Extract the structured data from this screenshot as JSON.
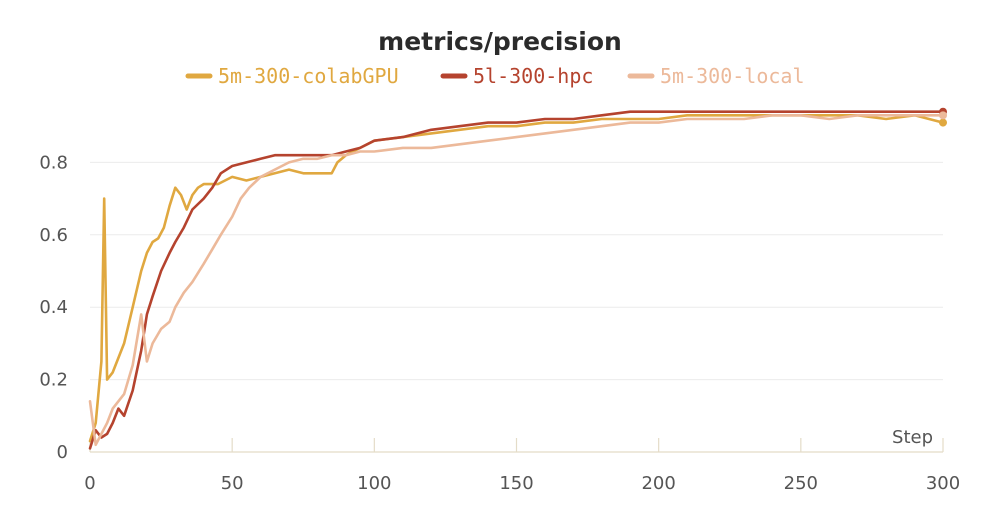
{
  "chart_data": {
    "type": "line",
    "title": "metrics/precision",
    "xlabel": "Step",
    "ylabel": "",
    "xlim": [
      0,
      300
    ],
    "ylim": [
      0,
      1
    ],
    "xticks": [
      0,
      50,
      100,
      150,
      200,
      250,
      300
    ],
    "yticks": [
      0,
      0.2,
      0.4,
      0.6,
      0.8
    ],
    "ytick_labels": [
      "0",
      "0.2",
      "0.4",
      "0.6",
      "0.8"
    ],
    "legend_position": "top",
    "series": [
      {
        "name": "5m-300-colabGPU",
        "color": "#e0a840",
        "points": [
          [
            0,
            0.03
          ],
          [
            2,
            0.08
          ],
          [
            4,
            0.25
          ],
          [
            5,
            0.7
          ],
          [
            6,
            0.2
          ],
          [
            8,
            0.22
          ],
          [
            10,
            0.26
          ],
          [
            12,
            0.3
          ],
          [
            15,
            0.4
          ],
          [
            18,
            0.5
          ],
          [
            20,
            0.55
          ],
          [
            22,
            0.58
          ],
          [
            24,
            0.59
          ],
          [
            26,
            0.62
          ],
          [
            28,
            0.68
          ],
          [
            30,
            0.73
          ],
          [
            32,
            0.71
          ],
          [
            34,
            0.67
          ],
          [
            36,
            0.71
          ],
          [
            38,
            0.73
          ],
          [
            40,
            0.74
          ],
          [
            45,
            0.74
          ],
          [
            50,
            0.76
          ],
          [
            55,
            0.75
          ],
          [
            60,
            0.76
          ],
          [
            65,
            0.77
          ],
          [
            70,
            0.78
          ],
          [
            75,
            0.77
          ],
          [
            80,
            0.77
          ],
          [
            85,
            0.77
          ],
          [
            87,
            0.8
          ],
          [
            90,
            0.82
          ],
          [
            95,
            0.84
          ],
          [
            100,
            0.86
          ],
          [
            110,
            0.87
          ],
          [
            120,
            0.88
          ],
          [
            130,
            0.89
          ],
          [
            140,
            0.9
          ],
          [
            150,
            0.9
          ],
          [
            160,
            0.91
          ],
          [
            170,
            0.91
          ],
          [
            180,
            0.92
          ],
          [
            190,
            0.92
          ],
          [
            200,
            0.92
          ],
          [
            210,
            0.93
          ],
          [
            220,
            0.93
          ],
          [
            230,
            0.93
          ],
          [
            240,
            0.93
          ],
          [
            250,
            0.93
          ],
          [
            260,
            0.93
          ],
          [
            270,
            0.93
          ],
          [
            280,
            0.92
          ],
          [
            290,
            0.93
          ],
          [
            300,
            0.91
          ]
        ]
      },
      {
        "name": "5l-300-hpc",
        "color": "#b5432e",
        "points": [
          [
            0,
            0.01
          ],
          [
            2,
            0.06
          ],
          [
            4,
            0.04
          ],
          [
            6,
            0.05
          ],
          [
            8,
            0.08
          ],
          [
            10,
            0.12
          ],
          [
            12,
            0.1
          ],
          [
            15,
            0.17
          ],
          [
            18,
            0.28
          ],
          [
            20,
            0.38
          ],
          [
            22,
            0.43
          ],
          [
            25,
            0.5
          ],
          [
            28,
            0.55
          ],
          [
            30,
            0.58
          ],
          [
            33,
            0.62
          ],
          [
            36,
            0.67
          ],
          [
            40,
            0.7
          ],
          [
            43,
            0.73
          ],
          [
            46,
            0.77
          ],
          [
            50,
            0.79
          ],
          [
            55,
            0.8
          ],
          [
            60,
            0.81
          ],
          [
            65,
            0.82
          ],
          [
            70,
            0.82
          ],
          [
            75,
            0.82
          ],
          [
            80,
            0.82
          ],
          [
            85,
            0.82
          ],
          [
            90,
            0.83
          ],
          [
            95,
            0.84
          ],
          [
            100,
            0.86
          ],
          [
            110,
            0.87
          ],
          [
            120,
            0.89
          ],
          [
            130,
            0.9
          ],
          [
            140,
            0.91
          ],
          [
            150,
            0.91
          ],
          [
            160,
            0.92
          ],
          [
            170,
            0.92
          ],
          [
            180,
            0.93
          ],
          [
            190,
            0.94
          ],
          [
            200,
            0.94
          ],
          [
            210,
            0.94
          ],
          [
            220,
            0.94
          ],
          [
            230,
            0.94
          ],
          [
            240,
            0.94
          ],
          [
            250,
            0.94
          ],
          [
            260,
            0.94
          ],
          [
            270,
            0.94
          ],
          [
            280,
            0.94
          ],
          [
            290,
            0.94
          ],
          [
            300,
            0.94
          ]
        ]
      },
      {
        "name": "5m-300-local",
        "color": "#ecb99a",
        "points": [
          [
            0,
            0.14
          ],
          [
            2,
            0.02
          ],
          [
            4,
            0.05
          ],
          [
            6,
            0.08
          ],
          [
            8,
            0.12
          ],
          [
            10,
            0.14
          ],
          [
            12,
            0.16
          ],
          [
            15,
            0.24
          ],
          [
            18,
            0.38
          ],
          [
            20,
            0.25
          ],
          [
            22,
            0.3
          ],
          [
            25,
            0.34
          ],
          [
            28,
            0.36
          ],
          [
            30,
            0.4
          ],
          [
            33,
            0.44
          ],
          [
            36,
            0.47
          ],
          [
            40,
            0.52
          ],
          [
            43,
            0.56
          ],
          [
            46,
            0.6
          ],
          [
            50,
            0.65
          ],
          [
            53,
            0.7
          ],
          [
            56,
            0.73
          ],
          [
            60,
            0.76
          ],
          [
            65,
            0.78
          ],
          [
            70,
            0.8
          ],
          [
            75,
            0.81
          ],
          [
            80,
            0.81
          ],
          [
            85,
            0.82
          ],
          [
            90,
            0.82
          ],
          [
            95,
            0.83
          ],
          [
            100,
            0.83
          ],
          [
            110,
            0.84
          ],
          [
            120,
            0.84
          ],
          [
            130,
            0.85
          ],
          [
            140,
            0.86
          ],
          [
            150,
            0.87
          ],
          [
            160,
            0.88
          ],
          [
            170,
            0.89
          ],
          [
            180,
            0.9
          ],
          [
            190,
            0.91
          ],
          [
            200,
            0.91
          ],
          [
            210,
            0.92
          ],
          [
            220,
            0.92
          ],
          [
            230,
            0.92
          ],
          [
            240,
            0.93
          ],
          [
            250,
            0.93
          ],
          [
            260,
            0.92
          ],
          [
            270,
            0.93
          ],
          [
            280,
            0.93
          ],
          [
            290,
            0.93
          ],
          [
            300,
            0.93
          ]
        ]
      }
    ]
  }
}
